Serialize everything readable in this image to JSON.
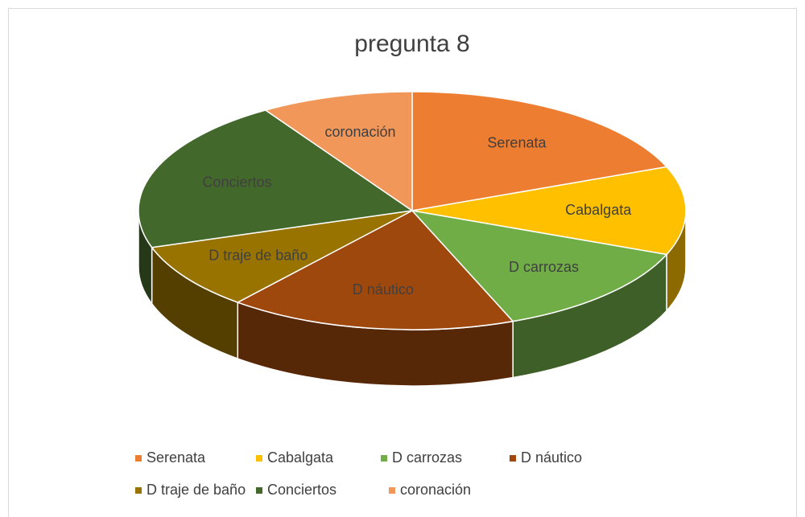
{
  "chart_data": {
    "type": "pie",
    "title": "pregunta 8",
    "categories": [
      "Serenata",
      "Cabalgata",
      "D carrozas",
      "D náutico",
      "D traje de baño",
      "Conciertos",
      "coronación"
    ],
    "values": [
      19,
      12,
      13,
      17,
      9,
      21,
      9
    ],
    "colors": [
      "#ED7D31",
      "#FFC000",
      "#70AD47",
      "#9E480E",
      "#997300",
      "#43682B",
      "#F1975A"
    ],
    "legend": "bottom"
  }
}
